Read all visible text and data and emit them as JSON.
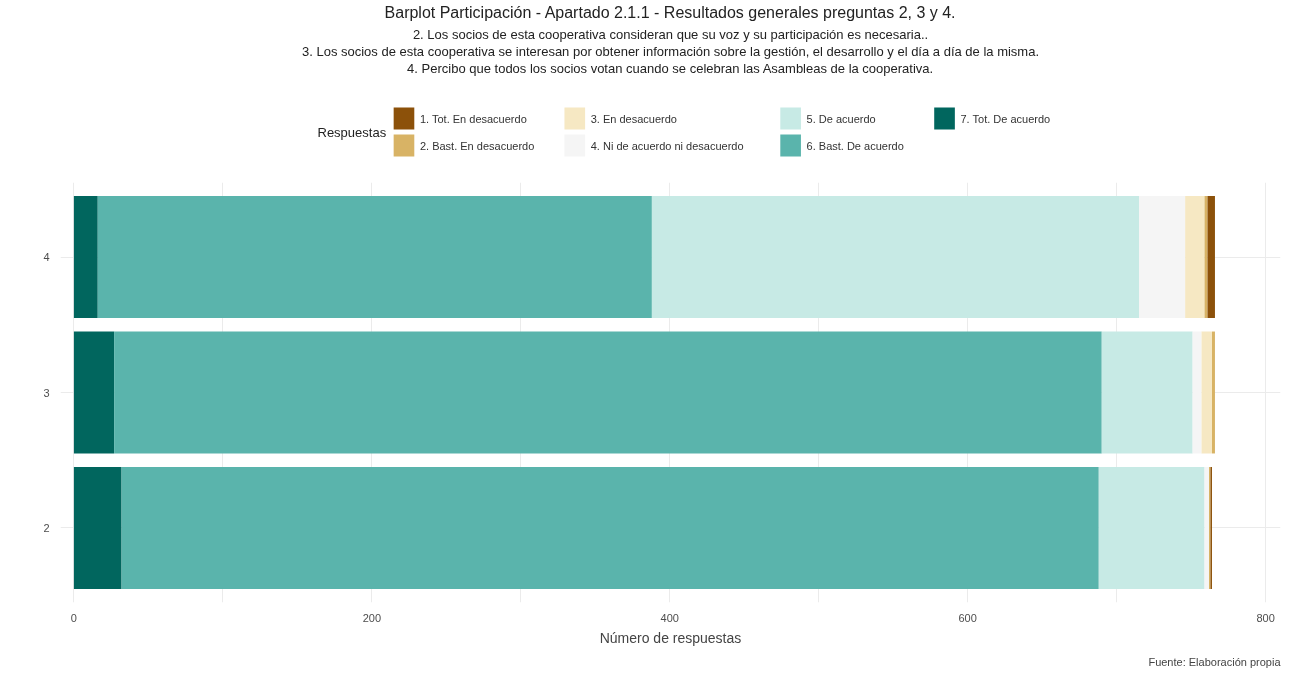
{
  "chart_data": {
    "type": "bar",
    "orientation": "horizontal",
    "stacked": true,
    "title": "Barplot Participación - Apartado 2.1.1 - Resultados generales preguntas 2, 3 y 4.",
    "subtitle": "2. Los socios de esta cooperativa consideran que su voz y su participación es necesaria..\n3. Los socios de esta cooperativa se interesan por obtener información sobre la gestión, el desarrollo y el día a día de la misma.\n4. Percibo que todos los socios votan cuando se celebran las Asambleas de la cooperativa.",
    "xlabel": "Número de respuestas",
    "legend_title": "Respuestas",
    "legend": "top",
    "grid": true,
    "categories": [
      "4",
      "3",
      "2"
    ],
    "xlim": [
      -9,
      810
    ],
    "xticks": [
      0,
      {
        "value": 100,
        "label": null
      },
      200,
      {
        "value": 300,
        "label": null
      },
      400,
      {
        "value": 500,
        "label": null
      },
      600,
      {
        "value": 700,
        "label": null
      },
      800
    ],
    "series": [
      {
        "name": "7. Tot. De acuerdo",
        "color": "#01665e",
        "values": [
          16,
          27,
          32
        ]
      },
      {
        "name": "6. Bast. De acuerdo",
        "color": "#5ab4ac",
        "values": [
          372,
          663,
          656
        ]
      },
      {
        "name": "5. De acuerdo",
        "color": "#c7eae5",
        "values": [
          327,
          61,
          71
        ]
      },
      {
        "name": "4. Ni de acuerdo ni desacuerdo",
        "color": "#f5f5f5",
        "values": [
          31,
          6,
          3
        ]
      },
      {
        "name": "3. En desacuerdo",
        "color": "#f6e8c3",
        "values": [
          13,
          7,
          null
        ]
      },
      {
        "name": "2. Bast. En desacuerdo",
        "color": "#d8b365",
        "values": [
          2,
          2,
          1
        ]
      },
      {
        "name": "1. Tot. En desacuerdo",
        "color": "#8c510a",
        "values": [
          5,
          0,
          1
        ]
      }
    ],
    "annotations": [
      "Fuente: Elaboración propia"
    ]
  }
}
